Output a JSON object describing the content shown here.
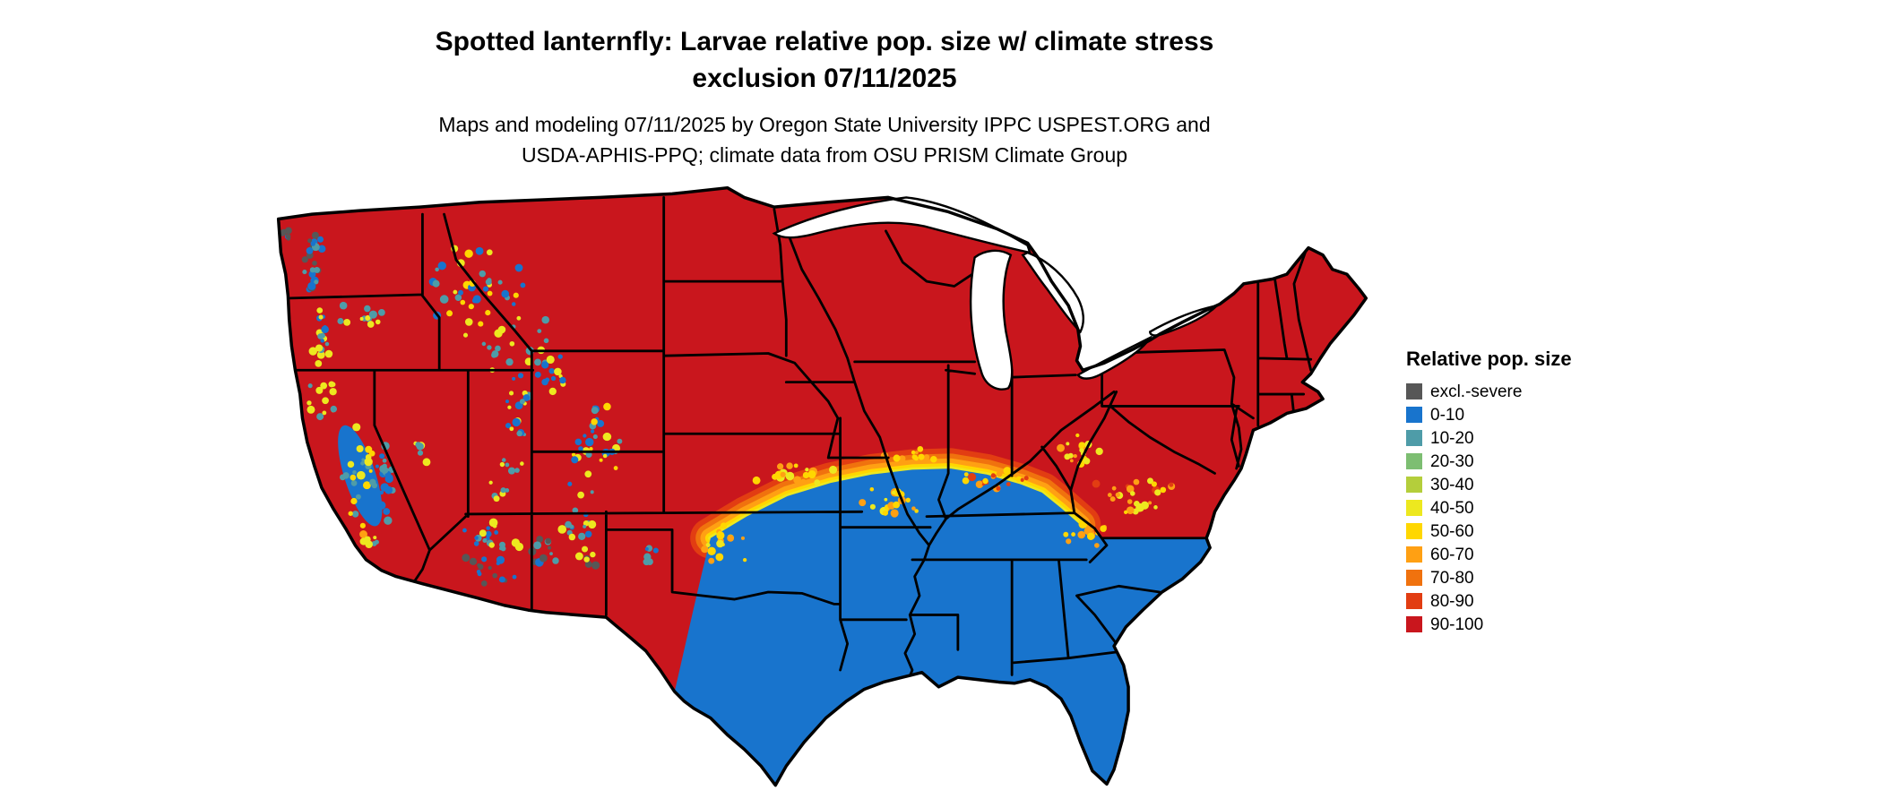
{
  "page": {
    "background": "#ffffff"
  },
  "header": {
    "title_line1": "Spotted lanternfly: Larvae relative pop. size w/ climate stress",
    "title_line2": "exclusion 07/11/2025",
    "subtitle_line1": "Maps and modeling 07/11/2025 by Oregon State University IPPC USPEST.ORG and",
    "subtitle_line2": "USDA-APHIS-PPQ; climate data from OSU PRISM Climate Group"
  },
  "legend": {
    "title": "Relative pop. size",
    "items": [
      {
        "label": "excl.-severe",
        "color": "#575757"
      },
      {
        "label": "0-10",
        "color": "#1874CD"
      },
      {
        "label": "10-20",
        "color": "#4E9CA8"
      },
      {
        "label": "20-30",
        "color": "#7DBE72"
      },
      {
        "label": "30-40",
        "color": "#B4CE3B"
      },
      {
        "label": "40-50",
        "color": "#EDE81F"
      },
      {
        "label": "50-60",
        "color": "#FFD700"
      },
      {
        "label": "60-70",
        "color": "#FFA013"
      },
      {
        "label": "70-80",
        "color": "#F0720E"
      },
      {
        "label": "80-90",
        "color": "#E23D12"
      },
      {
        "label": "90-100",
        "color": "#C9161D"
      }
    ]
  },
  "map": {
    "region": "Contiguous United States",
    "north_fill_class": "90-100",
    "south_fill_class": "0-10",
    "transition_classes": [
      "40-50",
      "50-60",
      "60-70",
      "70-80",
      "80-90"
    ]
  }
}
